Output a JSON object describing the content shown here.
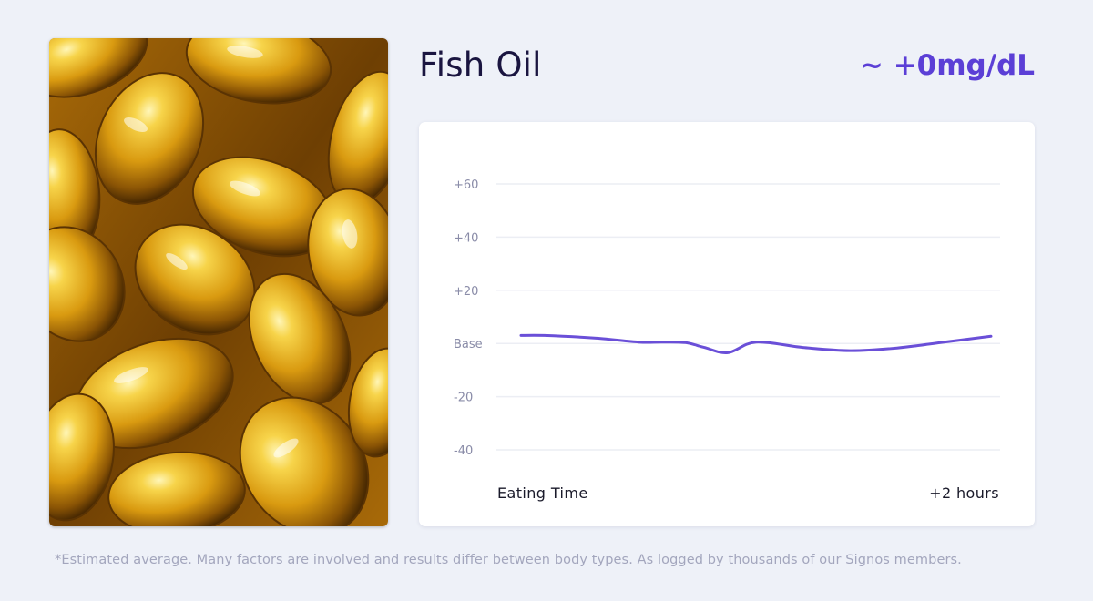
{
  "food": {
    "name": "Fish Oil",
    "delta": "~ +0mg/dL",
    "image_name": "fish-oil-capsules-photo"
  },
  "colors": {
    "accent": "#5b3fd6",
    "line": "#6a4fd8",
    "background": "#eef1f8",
    "card": "#ffffff",
    "grid": "#eceef4"
  },
  "chart_data": {
    "type": "line",
    "title": "",
    "xlabel": "",
    "ylabel": "",
    "x_start_label": "Eating Time",
    "x_end_label": "+2 hours",
    "ylim": [
      -40,
      60
    ],
    "y_ticks": [
      60,
      40,
      20,
      0,
      -20,
      -40
    ],
    "y_tick_labels": [
      "+60",
      "+40",
      "+20",
      "Base",
      "-20",
      "-40"
    ],
    "grid": true,
    "series": [
      {
        "x": [
          0,
          0.05,
          0.16,
          0.25,
          0.3,
          0.35,
          0.39,
          0.44,
          0.5,
          0.6,
          0.7,
          0.8,
          0.9,
          1.0
        ],
        "values": [
          3,
          3,
          2,
          0.5,
          0.5,
          0.3,
          -1.5,
          -3.5,
          0.5,
          -1.5,
          -2.7,
          -1.7,
          0.5,
          2.7
        ]
      }
    ]
  },
  "footnote": "*Estimated average. Many factors are involved and results differ between body types. As logged by thousands of our Signos members."
}
